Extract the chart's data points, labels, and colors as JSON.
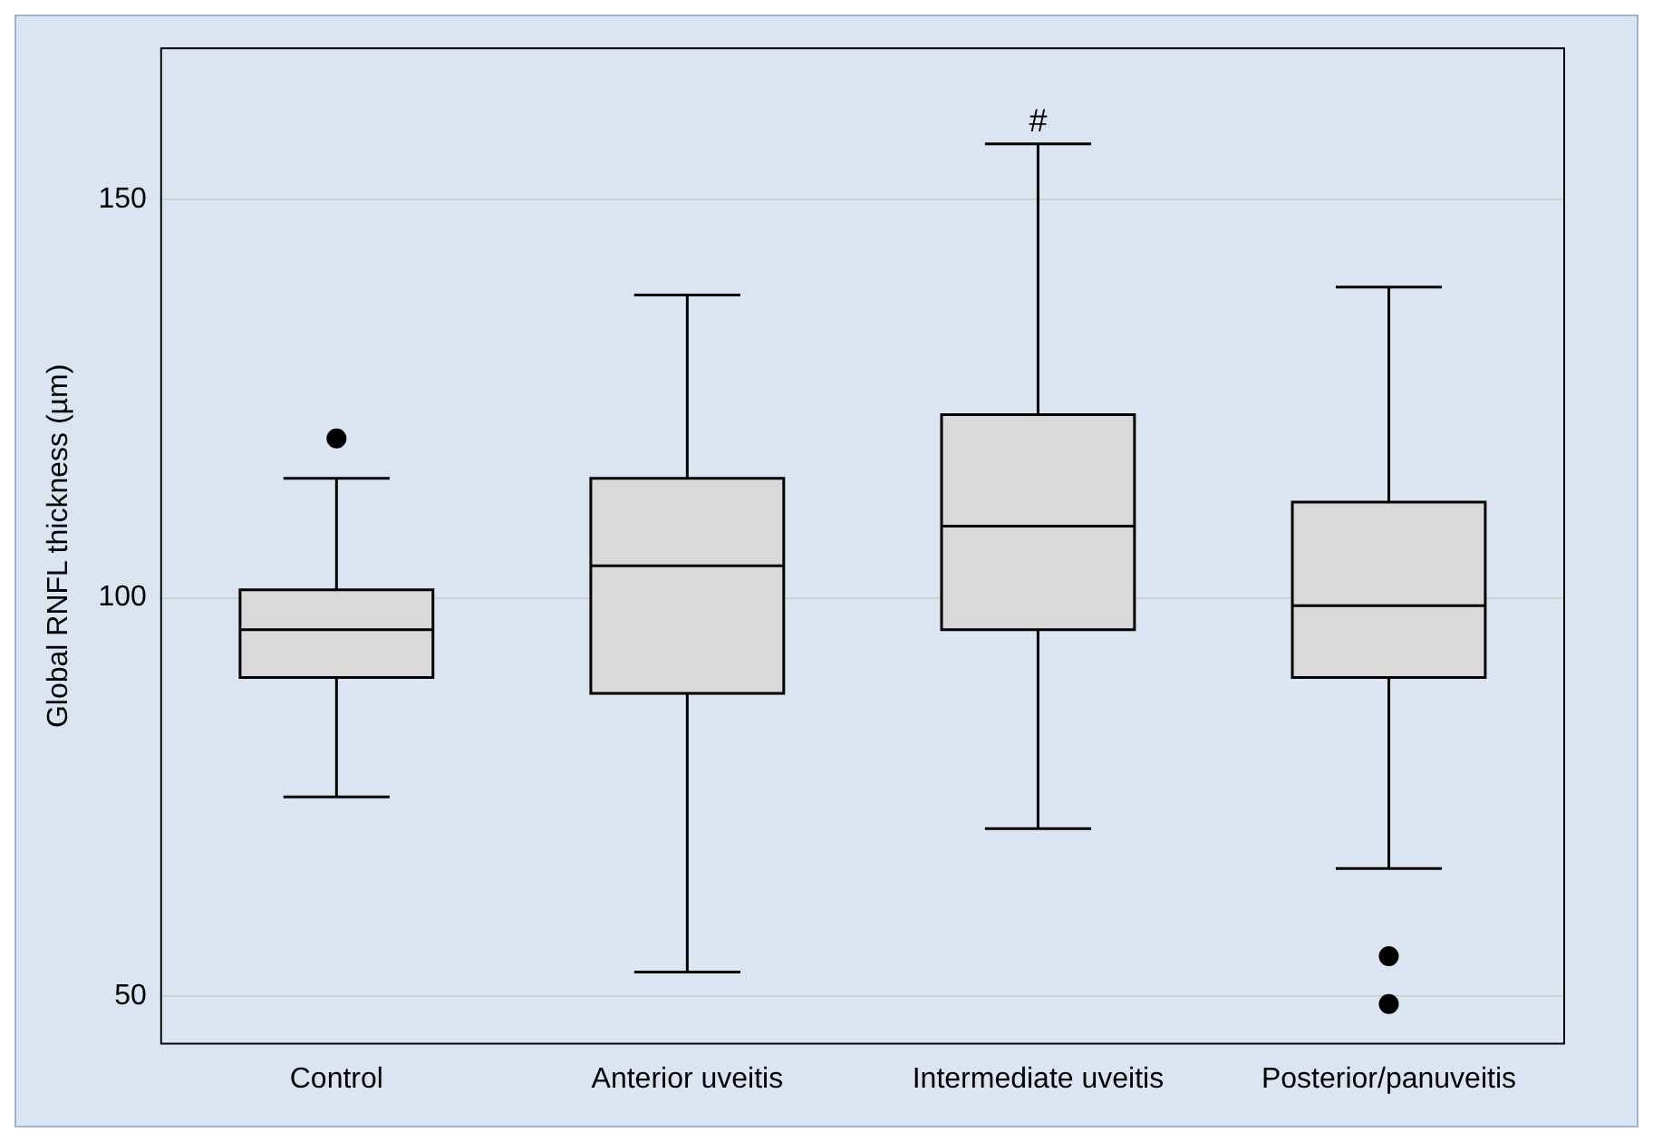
{
  "chart_data": {
    "type": "box",
    "ylabel": "Global RNFL thickness (µm)",
    "categories": [
      "Control",
      "Anterior uveitis",
      "Intermediate uveitis",
      "Posterior/panuveitis"
    ],
    "boxes": [
      {
        "low": 75,
        "q1": 90,
        "median": 96,
        "q3": 101,
        "high": 115,
        "outliers": [
          120
        ]
      },
      {
        "low": 53,
        "q1": 88,
        "median": 104,
        "q3": 115,
        "high": 138
      },
      {
        "low": 71,
        "q1": 96,
        "median": 109,
        "q3": 123,
        "high": 157
      },
      {
        "low": 66,
        "q1": 90,
        "median": 99,
        "q3": 112,
        "high": 139,
        "outliers": [
          55,
          49
        ]
      }
    ],
    "color": "#d9d9d9",
    "ylim": [
      44,
      169
    ],
    "yticks": [
      50,
      100,
      150
    ],
    "grid": "y",
    "legend": false,
    "annotations": [
      {
        "text": "#",
        "x": "Intermediate uveitis",
        "y": 157
      }
    ]
  }
}
